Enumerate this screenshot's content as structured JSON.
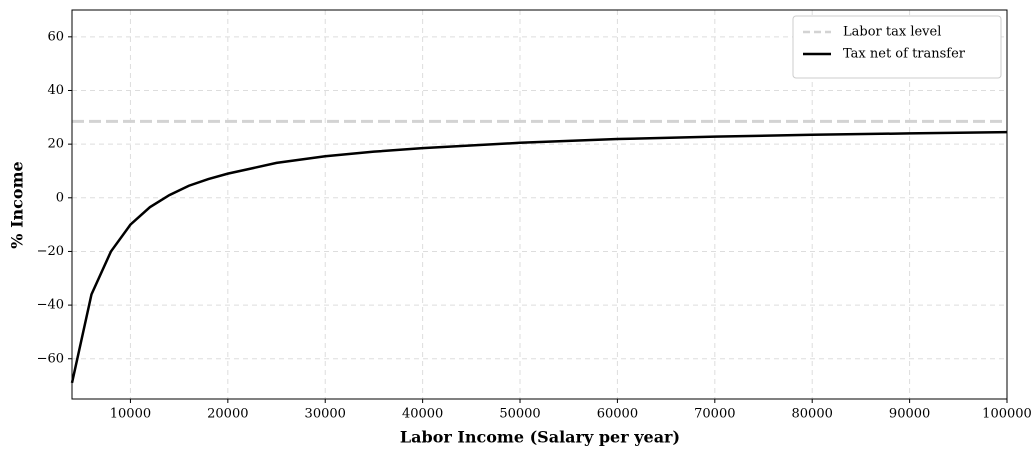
{
  "chart_data": {
    "type": "line",
    "x_label": "Labor Income (Salary per year)",
    "y_label": "% Income",
    "x": [
      4000,
      6000,
      8000,
      10000,
      12000,
      14000,
      16000,
      18000,
      20000,
      25000,
      30000,
      35000,
      40000,
      50000,
      60000,
      70000,
      80000,
      90000,
      100000
    ],
    "series": [
      {
        "name": "Labor tax level",
        "color": "#d3d3d3",
        "dashed": true,
        "values": [
          28.5,
          28.5,
          28.5,
          28.5,
          28.5,
          28.5,
          28.5,
          28.5,
          28.5,
          28.5,
          28.5,
          28.5,
          28.5,
          28.5,
          28.5,
          28.5,
          28.5,
          28.5,
          28.5
        ]
      },
      {
        "name": "Tax net of transfer",
        "color": "#000000",
        "dashed": false,
        "values": [
          -69,
          -36,
          -20,
          -10,
          -3.5,
          1,
          4.5,
          7,
          9,
          13,
          15.5,
          17.2,
          18.5,
          20.5,
          21.9,
          22.8,
          23.5,
          24,
          24.5
        ]
      }
    ],
    "xlim": [
      4000,
      100000
    ],
    "ylim": [
      -75,
      70
    ],
    "xticks": [
      10000,
      20000,
      30000,
      40000,
      50000,
      60000,
      70000,
      80000,
      90000,
      100000
    ],
    "yticks": [
      {
        "value": -60,
        "label": "−60"
      },
      {
        "value": -40,
        "label": "−40"
      },
      {
        "value": -20,
        "label": "−20"
      },
      0,
      20,
      40,
      60
    ],
    "grid": true,
    "legend": "upper-right"
  }
}
